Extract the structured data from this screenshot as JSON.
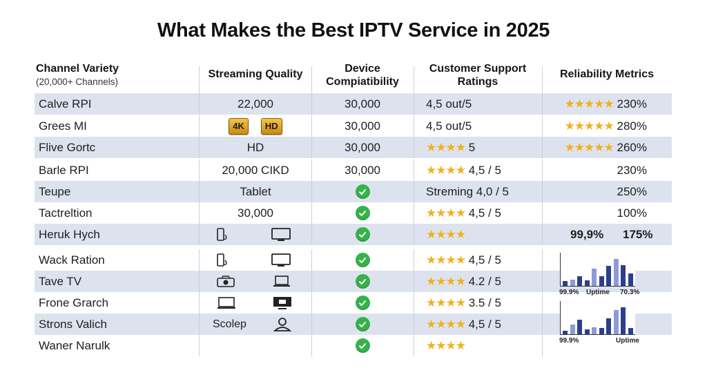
{
  "title": "What Makes the Best IPTV Service in 2025",
  "headers": {
    "channel": "Channel Variety",
    "channel_sub": "(20,000+ Channels)",
    "quality": "Streaming Quality",
    "device_1": "Device",
    "device_2": "Compiatibility",
    "support_1": "Customer Support",
    "support_2": "Ratings",
    "reliability": "Reliability Metrics"
  },
  "rows": [
    {
      "name": "Calve RPI",
      "quality": "22,000",
      "device": "30,000",
      "support": "4,5 out/5",
      "rel_text": "230%"
    },
    {
      "name": "Grees MI",
      "badge_4k": "4K",
      "badge_hd": "HD",
      "device": "30,000",
      "support": "4,5 out/5",
      "rel_text": "280%"
    },
    {
      "name": "Flive Gortc",
      "quality": "HD",
      "device": "30,000",
      "support_num": "5",
      "rel_text": "260%"
    },
    {
      "name": "Barle RPI",
      "quality": "20,000 CIKD",
      "device": "30,000",
      "support_num": "4,5 / 5",
      "rel_text": "230%"
    },
    {
      "name": "Teupe",
      "quality": "Tablet",
      "support": "Streming 4,0 / 5",
      "rel_text": "250%"
    },
    {
      "name": "Tactreltion",
      "quality": "30,000",
      "support_num": "4,5 / 5",
      "rel_text": "100%"
    },
    {
      "name": "Heruk Hych",
      "rel_a": "99,9%",
      "rel_b": "175%"
    },
    {
      "name": "Wack Ration",
      "support_num": "4,5 / 5"
    },
    {
      "name": "Tave TV",
      "support_num": "4.2 / 5"
    },
    {
      "name": "Frone Grarch",
      "support_num": "3.5 / 5"
    },
    {
      "name": "Strons Valich",
      "quality": "Scolep",
      "support_num": "4,5 / 5"
    },
    {
      "name": "Waner Narulk"
    }
  ],
  "chart1": {
    "labels": [
      "99.9%",
      "Uptime",
      "70.3%"
    ],
    "values": [
      0.15,
      0.2,
      0.3,
      0.18,
      0.55,
      0.3,
      0.62,
      0.85,
      0.65,
      0.4
    ]
  },
  "chart2": {
    "labels": [
      "99.9%",
      "Uptime"
    ],
    "values": [
      0.1,
      0.3,
      0.45,
      0.15,
      0.22,
      0.2,
      0.5,
      0.75,
      0.85,
      0.2
    ]
  },
  "colors": {
    "row_shade": "#dde3ee",
    "star": "#f2b01e",
    "check": "#35b24a",
    "bar_dark": "#2c3f8c",
    "bar_light": "#8d9bd6"
  }
}
